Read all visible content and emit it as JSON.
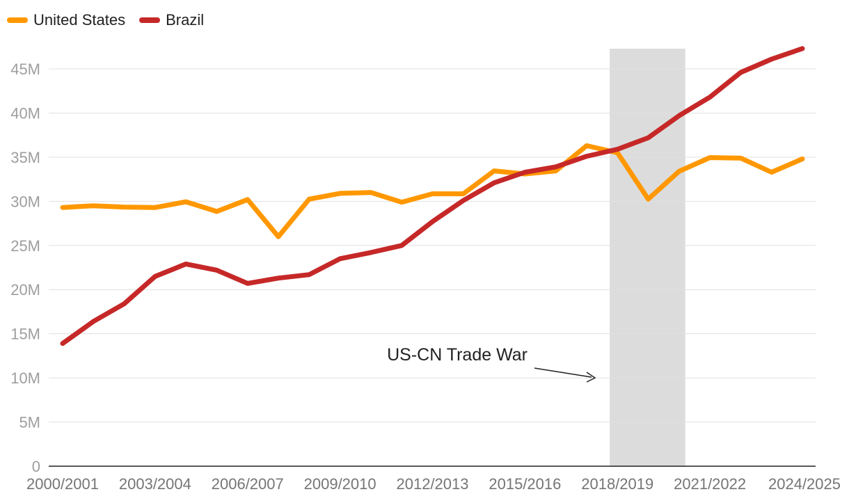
{
  "chart_data": {
    "type": "line",
    "title": "",
    "xlabel": "",
    "ylabel": "",
    "ylim": [
      0,
      45000000
    ],
    "y_ticks": [
      0,
      5000000,
      10000000,
      15000000,
      20000000,
      25000000,
      30000000,
      35000000,
      40000000,
      45000000
    ],
    "y_tick_labels": [
      "0",
      "5M",
      "10M",
      "15M",
      "20M",
      "25M",
      "30M",
      "35M",
      "40M",
      "45M"
    ],
    "categories": [
      "2000/2001",
      "2001/2002",
      "2002/2003",
      "2003/2004",
      "2004/2005",
      "2005/2006",
      "2006/2007",
      "2007/2008",
      "2008/2009",
      "2009/2010",
      "2010/2011",
      "2011/2012",
      "2012/2013",
      "2013/2014",
      "2014/2015",
      "2015/2016",
      "2016/2017",
      "2017/2018",
      "2018/2019",
      "2019/2020",
      "2020/2021",
      "2021/2022",
      "2022/2023",
      "2023/2024",
      "2024/2025"
    ],
    "x_tick_labels": [
      "2000/2001",
      "2003/2004",
      "2006/2007",
      "2009/2010",
      "2012/2013",
      "2015/2016",
      "2018/2019",
      "2021/2022",
      "2024/2025"
    ],
    "series": [
      {
        "name": "United States",
        "color": "#ff9800",
        "values": [
          29300000,
          29500000,
          29350000,
          29300000,
          29950000,
          28850000,
          30200000,
          26000000,
          30250000,
          30900000,
          31000000,
          29900000,
          30850000,
          30850000,
          33450000,
          33100000,
          33450000,
          36300000,
          35500000,
          30250000,
          33400000,
          34950000,
          34900000,
          33300000,
          34800000
        ]
      },
      {
        "name": "Brazil",
        "color": "#c62828",
        "values": [
          13900000,
          16400000,
          18400000,
          21500000,
          22900000,
          22200000,
          20700000,
          21300000,
          21700000,
          23500000,
          24200000,
          25000000,
          27700000,
          30100000,
          32100000,
          33300000,
          33900000,
          35100000,
          35900000,
          37200000,
          39700000,
          41800000,
          44600000,
          46100000,
          47300000
        ]
      }
    ],
    "highlight": {
      "label": "US-CN Trade War",
      "from_category": "2018/2019",
      "to_category": "2020/2021"
    },
    "legend_position": "top-left",
    "grid": true
  },
  "colors": {
    "grid": "#e0e0e0",
    "highlight": "#dcdcdc",
    "axis": "#212121"
  }
}
